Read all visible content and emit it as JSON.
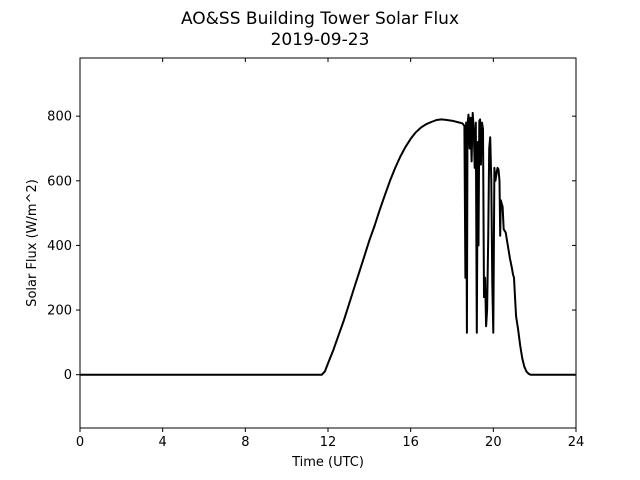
{
  "chart_data": {
    "type": "line",
    "title": "AO&SS Building Tower Solar Flux",
    "subtitle": "2019-09-23",
    "xlabel": "Time (UTC)",
    "ylabel": "Solar Flux (W/m^2)",
    "xlim": [
      0,
      24
    ],
    "ylim": [
      -165,
      980
    ],
    "xticks": [
      0,
      4,
      8,
      12,
      16,
      20,
      24
    ],
    "yticks": [
      0,
      200,
      400,
      600,
      800
    ],
    "grid": false,
    "legend": "none",
    "line_color": "#000000",
    "series": [
      {
        "x": [
          0,
          11.7,
          11.85,
          12.0,
          12.25,
          12.5,
          12.75,
          13.0,
          13.25,
          13.5,
          13.75,
          14.0,
          14.25,
          14.5,
          14.75,
          15.0,
          15.25,
          15.5,
          15.75,
          16.0,
          16.25,
          16.5,
          16.75,
          17.0,
          17.25,
          17.5,
          17.75,
          18.0,
          18.25,
          18.5,
          18.6,
          18.65,
          18.68,
          18.72,
          18.75,
          18.8,
          18.85,
          18.9,
          18.95,
          19.0,
          19.05,
          19.1,
          19.15,
          19.2,
          19.25,
          19.28,
          19.32,
          19.36,
          19.4,
          19.45,
          19.5,
          19.55,
          19.6,
          19.65,
          19.7,
          19.75,
          19.8,
          19.85,
          19.9,
          19.95,
          20.0,
          20.05,
          20.1,
          20.15,
          20.2,
          20.25,
          20.3,
          20.33,
          20.36,
          20.4,
          20.45,
          20.5,
          20.6,
          20.7,
          20.8,
          20.9,
          20.95,
          21.0,
          21.05,
          21.1,
          21.2,
          21.3,
          21.4,
          21.5,
          21.6,
          21.7,
          21.8,
          21.85,
          21.9,
          21.95,
          22.0,
          22.1,
          22.3,
          22.5,
          22.7,
          22.9,
          23.1,
          23.3,
          23.5,
          23.7,
          23.85,
          23.95,
          24.0
        ],
        "y": [
          0,
          0,
          10,
          35,
          75,
          120,
          165,
          215,
          265,
          315,
          365,
          415,
          460,
          510,
          555,
          600,
          640,
          675,
          705,
          730,
          750,
          765,
          775,
          782,
          788,
          790,
          788,
          786,
          782,
          778,
          770,
          300,
          780,
          130,
          775,
          805,
          700,
          795,
          660,
          810,
          760,
          640,
          780,
          130,
          720,
          400,
          785,
          790,
          650,
          780,
          760,
          240,
          300,
          150,
          200,
          420,
          700,
          735,
          600,
          280,
          130,
          640,
          600,
          620,
          640,
          635,
          600,
          430,
          540,
          530,
          520,
          450,
          440,
          400,
          360,
          330,
          310,
          300,
          240,
          180,
          140,
          90,
          50,
          25,
          10,
          3,
          0,
          0,
          0,
          0,
          0,
          0,
          0,
          0,
          0,
          0,
          0,
          0,
          0,
          0,
          0,
          0,
          0
        ]
      }
    ]
  }
}
